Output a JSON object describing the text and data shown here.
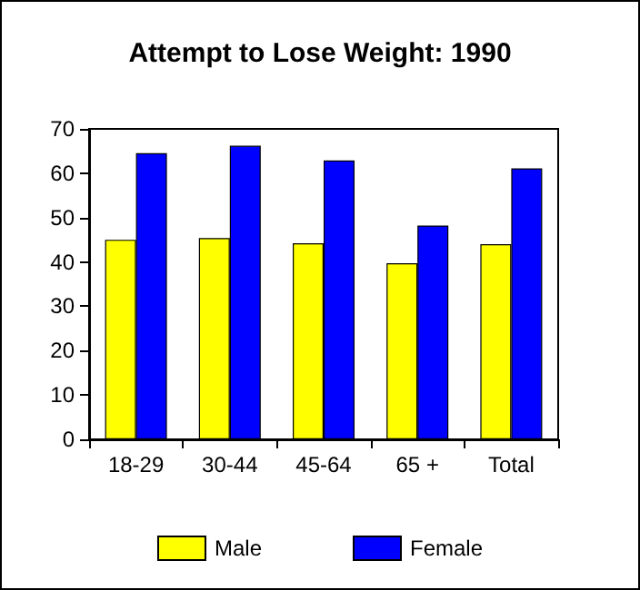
{
  "chart_data": {
    "type": "bar",
    "title": "Attempt to Lose Weight: 1990",
    "categories": [
      "18-29",
      "30-44",
      "45-64",
      "65 +",
      "Total"
    ],
    "series": [
      {
        "name": "Male",
        "color": "#ffff00",
        "values": [
          45,
          45.4,
          44.2,
          39.7,
          44
        ]
      },
      {
        "name": "Female",
        "color": "#0000ff",
        "values": [
          64.5,
          66.2,
          62.9,
          48.2,
          61.1
        ]
      }
    ],
    "ylim": [
      0,
      70
    ],
    "yticks": [
      0,
      10,
      20,
      30,
      40,
      50,
      60,
      70
    ],
    "grid": false,
    "legend": "bottom"
  }
}
